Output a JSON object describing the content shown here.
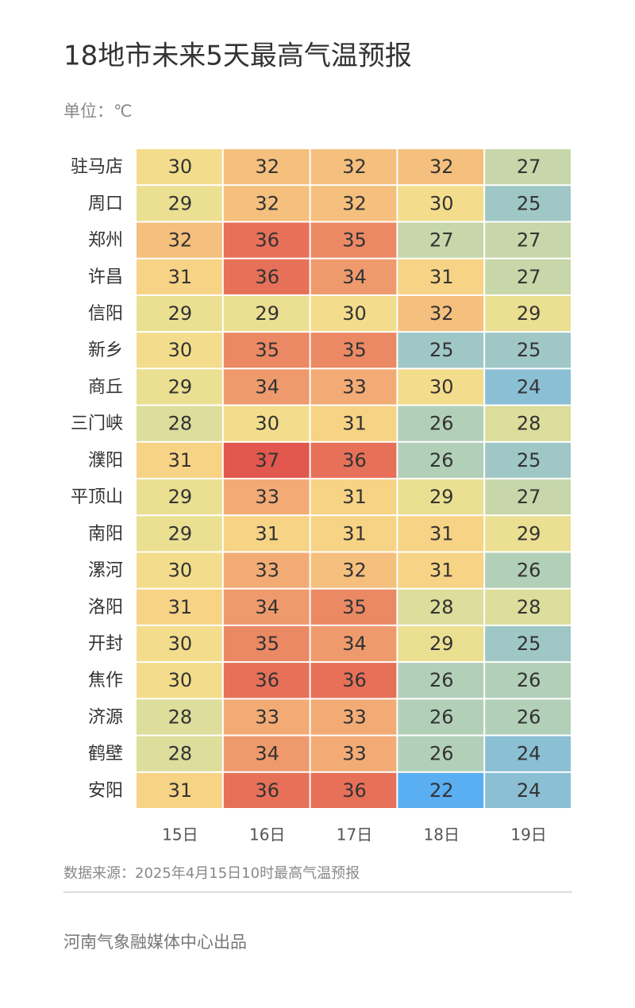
{
  "chart_data": {
    "type": "heatmap",
    "title": "18地市未来5天最高气温预报",
    "subtitle": "单位：℃",
    "source": "数据来源：2025年4月15日10时最高气温预报",
    "footer": "河南气象融媒体中心出品",
    "columns": [
      "15日",
      "16日",
      "17日",
      "18日",
      "19日"
    ],
    "rows": [
      "驻马店",
      "周口",
      "郑州",
      "许昌",
      "信阳",
      "新乡",
      "商丘",
      "三门峡",
      "濮阳",
      "平顶山",
      "南阳",
      "漯河",
      "洛阳",
      "开封",
      "焦作",
      "济源",
      "鹤壁",
      "安阳"
    ],
    "values": [
      [
        30,
        32,
        32,
        32,
        27
      ],
      [
        29,
        32,
        32,
        30,
        25
      ],
      [
        32,
        36,
        35,
        27,
        27
      ],
      [
        31,
        36,
        34,
        31,
        27
      ],
      [
        29,
        29,
        30,
        32,
        29
      ],
      [
        30,
        35,
        35,
        25,
        25
      ],
      [
        29,
        34,
        33,
        30,
        24
      ],
      [
        28,
        30,
        31,
        26,
        28
      ],
      [
        31,
        37,
        36,
        26,
        25
      ],
      [
        29,
        33,
        31,
        29,
        27
      ],
      [
        29,
        31,
        31,
        31,
        29
      ],
      [
        30,
        33,
        32,
        31,
        26
      ],
      [
        31,
        34,
        35,
        28,
        28
      ],
      [
        30,
        35,
        34,
        29,
        25
      ],
      [
        30,
        36,
        36,
        26,
        26
      ],
      [
        28,
        33,
        33,
        26,
        26
      ],
      [
        28,
        34,
        33,
        26,
        24
      ],
      [
        31,
        36,
        36,
        22,
        24
      ]
    ],
    "colors": [
      "#5aaef2",
      "#8ec0d2",
      "#b8d2b4",
      "#e6e096",
      "#f8dc88",
      "#f4b078",
      "#ec8c66",
      "#e2584e"
    ]
  }
}
